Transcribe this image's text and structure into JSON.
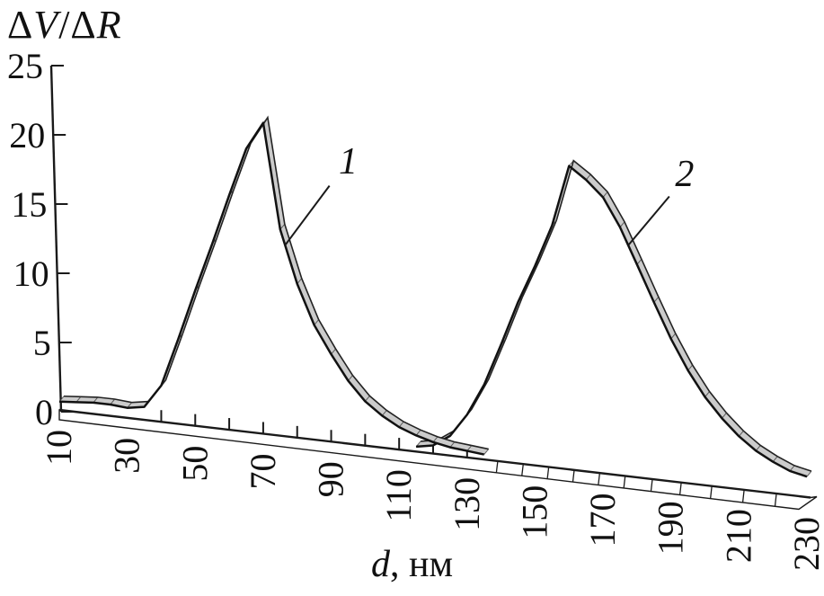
{
  "figure": {
    "title_parts": [
      {
        "text": "Δ",
        "italic": false
      },
      {
        "text": "V",
        "italic": true
      },
      {
        "text": "/",
        "italic": false
      },
      {
        "text": "Δ",
        "italic": false
      },
      {
        "text": "R",
        "italic": true
      }
    ],
    "xlabel_parts": [
      {
        "text": "d",
        "italic": true
      },
      {
        "text": ", нм",
        "italic": false
      }
    ],
    "background": "#ffffff"
  },
  "colors": {
    "stroke": "#1a1a1a",
    "front_line": "#111111",
    "back_line": "#222222",
    "ribbon_fill": "#cbcbcb",
    "band_fill": "#ffffff",
    "text": "#111111",
    "background": "#ffffff"
  },
  "chart_data": {
    "type": "line",
    "style": "pseudo-3d-ribbon",
    "title": "ΔV/ΔR",
    "xlabel": "d, нм",
    "ylabel": "ΔV/ΔR",
    "xlim": [
      10,
      230
    ],
    "ylim": [
      0,
      25
    ],
    "grid": false,
    "legend": "none",
    "y_ticks": [
      0,
      5,
      10,
      15,
      20,
      25
    ],
    "x_ticks_labeled": [
      10,
      30,
      50,
      70,
      90,
      110,
      130,
      150,
      170,
      190,
      210,
      230
    ],
    "x_ticks_minor": [
      40,
      50,
      60,
      70,
      80,
      90,
      100,
      110,
      120,
      130
    ],
    "band_dividers": [
      139,
      146.5,
      154,
      161.5,
      169,
      176.5,
      184.5,
      193,
      202,
      211.5,
      221
    ],
    "series": [
      {
        "name": "1",
        "peak": {
          "d": 70,
          "v": 20.5
        },
        "x": [
          10,
          15,
          20,
          25,
          30,
          35,
          40,
          45,
          50,
          55,
          60,
          65,
          70,
          75,
          80,
          85,
          90,
          95,
          100,
          105,
          110,
          115,
          120,
          125,
          130,
          135
        ],
        "values": [
          0.6,
          0.7,
          0.8,
          0.8,
          0.7,
          0.9,
          2.5,
          5.8,
          9.2,
          12.4,
          15.7,
          18.8,
          20.5,
          13.5,
          10.0,
          7.4,
          5.6,
          4.0,
          2.8,
          2.0,
          1.4,
          1.0,
          0.7,
          0.5,
          0.4,
          0.3
        ]
      },
      {
        "name": "2",
        "peak": {
          "d": 160,
          "v": 17.7
        },
        "x": [
          115,
          120,
          125,
          130,
          135,
          140,
          145,
          150,
          155,
          160,
          165,
          170,
          175,
          180,
          185,
          190,
          195,
          200,
          205,
          210,
          215,
          220,
          225,
          230
        ],
        "values": [
          0.3,
          0.5,
          1.2,
          2.6,
          4.5,
          7.0,
          9.6,
          11.8,
          14.2,
          17.7,
          16.9,
          15.9,
          14.2,
          12.1,
          10.0,
          8.0,
          6.3,
          4.9,
          3.8,
          2.9,
          2.2,
          1.7,
          1.3,
          1.1
        ]
      }
    ],
    "annotations": [
      {
        "label": "1",
        "text_at": {
          "d": 95,
          "v": 18.0
        },
        "line_from": {
          "d": 89.5,
          "v": 16.4
        },
        "line_to": {
          "d": 76.5,
          "v": 12.5
        }
      },
      {
        "label": "2",
        "text_at": {
          "d": 194,
          "v": 17.3
        },
        "line_from": {
          "d": 189.5,
          "v": 16.0
        },
        "line_to": {
          "d": 177.5,
          "v": 13.2
        }
      }
    ]
  }
}
